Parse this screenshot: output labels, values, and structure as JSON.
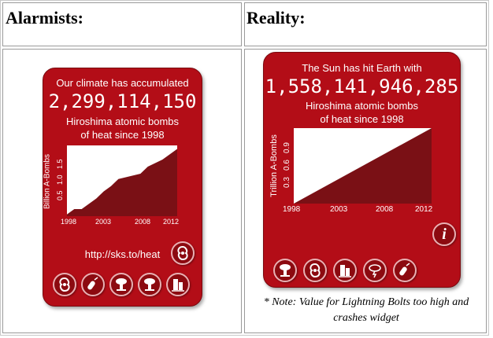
{
  "columns": {
    "left_header": "Alarmists:",
    "right_header": "Reality:"
  },
  "left_widget": {
    "line1": "Our climate has accumulated",
    "counter": "2,299,114,150",
    "line2": "Hiroshima atomic bombs",
    "line3": "of heat since 1998",
    "ylabel": "Billion A-Bombs",
    "yticks": [
      "0.5",
      "1.0",
      "1.5"
    ],
    "xticks": [
      "1998",
      "2003",
      "2008",
      "2012"
    ],
    "url": "http://sks.to/heat",
    "icons": [
      "hurricane-icon",
      "bomb-icon",
      "mushroom-cloud-icon",
      "mushroom-cloud-icon",
      "earthquake-building-icon",
      "earthquake-building-icon"
    ]
  },
  "right_widget": {
    "line1": "The Sun has hit Earth with",
    "counter": "1,558,141,946,285",
    "line2": "Hiroshima atomic bombs",
    "line3": "of heat since 1998",
    "ylabel": "Trillion A-Bombs",
    "yticks": [
      "0.3",
      "0.6",
      "0.9"
    ],
    "xticks": [
      "1998",
      "2003",
      "2008",
      "2012"
    ],
    "info": "i",
    "icons": [
      "mushroom-cloud-icon",
      "hurricane-icon",
      "earthquake-building-icon",
      "lightning-cloud-icon",
      "bomb-icon"
    ]
  },
  "note": "* Note: Value for Lightning Bolts too high and crashes widget",
  "chart_data": [
    {
      "type": "area",
      "title": "",
      "ylabel": "Billion A-Bombs",
      "x": [
        1998,
        1999,
        2000,
        2001,
        2002,
        2003,
        2004,
        2005,
        2006,
        2007,
        2008,
        2009,
        2010,
        2011,
        2012,
        2013
      ],
      "values": [
        0.05,
        0.2,
        0.2,
        0.35,
        0.5,
        0.7,
        0.85,
        1.05,
        1.1,
        1.15,
        1.2,
        1.4,
        1.5,
        1.6,
        1.75,
        1.9
      ],
      "xlim": [
        1998,
        2013
      ],
      "ylim": [
        0,
        2.0
      ]
    },
    {
      "type": "area",
      "title": "",
      "ylabel": "Trillion A-Bombs",
      "x": [
        1998,
        2013
      ],
      "values": [
        0,
        1.2
      ],
      "xlim": [
        1998,
        2013
      ],
      "ylim": [
        0,
        1.2
      ]
    }
  ],
  "colors": {
    "widget": "#b30d17",
    "chart_fill": "#7a1015",
    "chart_bg": "#ffffff"
  }
}
